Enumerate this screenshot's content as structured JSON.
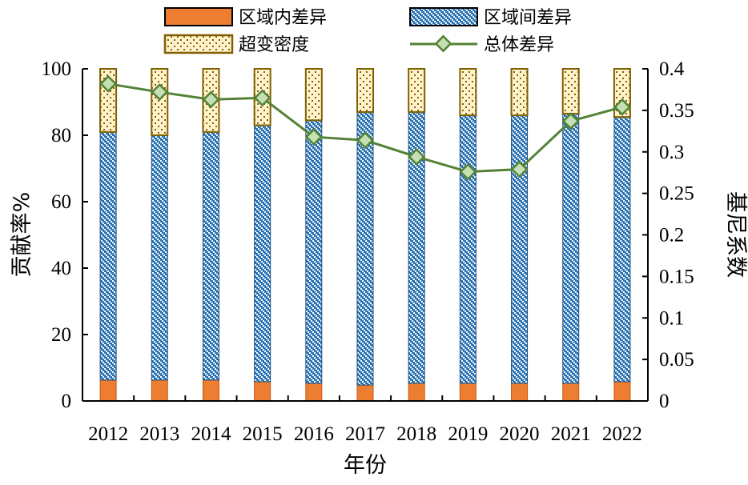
{
  "chart_data": {
    "type": "bar",
    "stacked": true,
    "categories": [
      "2012",
      "2013",
      "2014",
      "2015",
      "2016",
      "2017",
      "2018",
      "2019",
      "2020",
      "2021",
      "2022"
    ],
    "series": [
      {
        "name": "区域内差异",
        "type": "bar",
        "axis": "left",
        "color": "#ED7D31",
        "values": [
          6.3,
          6.3,
          6.3,
          5.8,
          5.3,
          4.8,
          5.3,
          5.3,
          5.3,
          5.3,
          5.8
        ]
      },
      {
        "name": "区域间差异",
        "type": "bar",
        "axis": "left",
        "color": "#2E75B6",
        "values": [
          74.7,
          73.7,
          74.7,
          77.2,
          79.2,
          82.2,
          81.7,
          80.7,
          80.7,
          81.2,
          79.7
        ]
      },
      {
        "name": "超变密度",
        "type": "bar",
        "axis": "left",
        "color": "#FFF2CC",
        "values": [
          19.0,
          20.0,
          19.0,
          17.0,
          15.5,
          13.0,
          13.0,
          14.0,
          14.0,
          13.5,
          14.5
        ]
      },
      {
        "name": "总体差异",
        "type": "line",
        "axis": "right",
        "color": "#548235",
        "values": [
          0.382,
          0.372,
          0.363,
          0.365,
          0.318,
          0.314,
          0.294,
          0.276,
          0.279,
          0.337,
          0.354
        ]
      }
    ],
    "xlabel": "年份",
    "ylabel": "贡献率%",
    "y2label": "基尼系数",
    "ylim": [
      0,
      100
    ],
    "y2lim": [
      0,
      0.4
    ],
    "yticks": [
      "0",
      "20",
      "40",
      "60",
      "80",
      "100"
    ],
    "y2ticks": [
      "0",
      "0.05",
      "0.1",
      "0.15",
      "0.2",
      "0.25",
      "0.3",
      "0.35",
      "0.4"
    ],
    "grid": false,
    "legend_position": "top"
  }
}
